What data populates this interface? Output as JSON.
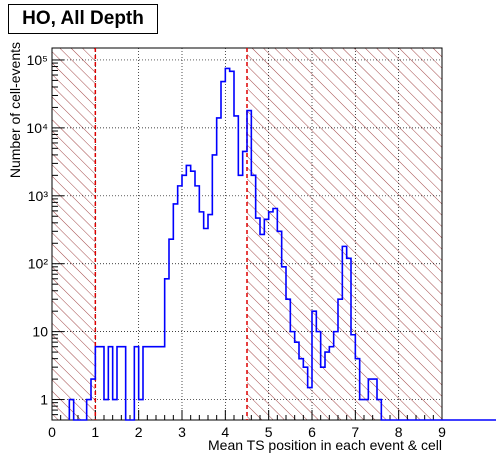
{
  "chart_data": {
    "type": "histogram",
    "title": "HO, All Depth",
    "xlabel": "Mean TS position in each event & cell",
    "ylabel": "Number of cell-events",
    "xlim": [
      0,
      9
    ],
    "ylim": [
      0.5,
      150000
    ],
    "yscale": "log",
    "grid": true,
    "x_ticks": [
      "0",
      "1",
      "2",
      "3",
      "4",
      "5",
      "6",
      "7",
      "8",
      "9"
    ],
    "y_ticks": [
      {
        "value": 1,
        "label": "1"
      },
      {
        "value": 10,
        "label": "10"
      },
      {
        "value": 100,
        "label": "10²"
      },
      {
        "value": 1000,
        "label": "10³"
      },
      {
        "value": 10000,
        "label": "10⁴"
      },
      {
        "value": 100000,
        "label": "10⁵"
      }
    ],
    "bin_width": 0.1,
    "series": [
      {
        "color": "#0000ff",
        "x_start": 0.4,
        "values": [
          1,
          0,
          0,
          0,
          1,
          2,
          6,
          6,
          1,
          6,
          1,
          6,
          6,
          0,
          0,
          6,
          1,
          6,
          6,
          6,
          6,
          6,
          60,
          230,
          760,
          1400,
          2000,
          2800,
          2300,
          1400,
          580,
          330,
          530,
          4000,
          14000,
          48000,
          75000,
          68000,
          15000,
          2000,
          4500,
          18000,
          2000,
          470,
          270,
          450,
          580,
          650,
          300,
          90,
          30,
          10,
          7,
          4,
          3,
          1.5,
          20,
          10,
          3,
          5,
          6,
          10,
          30,
          180,
          120,
          9,
          4,
          1,
          1,
          2,
          2,
          1,
          0,
          0,
          0,
          0,
          0,
          0,
          0,
          0,
          0,
          0,
          0,
          0,
          0,
          0,
          0,
          0,
          0,
          0,
          0,
          0,
          0,
          0,
          0,
          0,
          0,
          0,
          0,
          0
        ]
      }
    ],
    "cut_lines": [
      1,
      4.5
    ],
    "excluded_regions": [
      [
        0,
        1
      ],
      [
        4.5,
        9
      ]
    ]
  }
}
